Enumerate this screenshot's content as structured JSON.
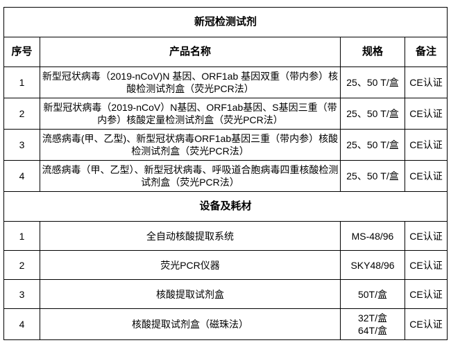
{
  "section1": {
    "title": "新冠检测试剂",
    "headers": [
      "序号",
      "产品名称",
      "规格",
      "备注"
    ],
    "rows": [
      {
        "no": "1",
        "name": "新型冠状病毒（2019-nCoV)N 基因、ORF1ab 基因双重（带内参）核酸检测试剂盒（荧光PCR法）",
        "spec": "25、50 T/盒",
        "note": "CE认证"
      },
      {
        "no": "2",
        "name": "新型冠状病毒（2019-nCoV）N基因、ORF1ab基因、S基因三重（带内参）核酸定量检测试剂盒（荧光PCR法）",
        "spec": "25、50 T/盒",
        "note": "CE认证"
      },
      {
        "no": "3",
        "name": "流感病毒(甲、乙型)、新型冠状病毒ORF1ab基因三重（带内参）核酸检测试剂盒（荧光PCR法）",
        "spec": "25、50 T/盒",
        "note": "CE认证"
      },
      {
        "no": "4",
        "name": "流感病毒（甲、乙型）、新型冠状病毒、呼吸道合胞病毒四重核酸检测试剂盒（荧光PCR法）",
        "spec": "25、50 T/盒",
        "note": "CE认证"
      }
    ]
  },
  "section2": {
    "title": "设备及耗材",
    "rows": [
      {
        "no": "1",
        "name": "全自动核酸提取系统",
        "spec": "MS-48/96",
        "note": "CE认证"
      },
      {
        "no": "2",
        "name": "荧光PCR仪器",
        "spec": "SKY48/96",
        "note": "CE认证"
      },
      {
        "no": "3",
        "name": "核酸提取试剂盒",
        "spec": "50T/盒",
        "note": "CE认证"
      },
      {
        "no": "4",
        "name": "核酸提取试剂盒（磁珠法）",
        "spec_lines": [
          "32T/盒",
          "64T/盒"
        ],
        "note": "CE认证"
      }
    ]
  }
}
